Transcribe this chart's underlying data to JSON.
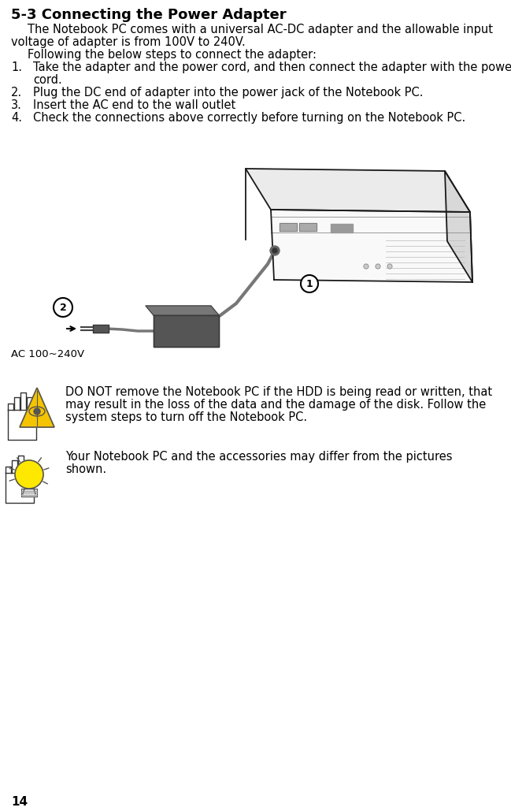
{
  "title": "5-3 Connecting the Power Adapter",
  "title_fontsize": 13,
  "body_fontsize": 10.5,
  "background_color": "#ffffff",
  "text_color": "#000000",
  "page_number": "14",
  "para1_line1": "The Notebook PC comes with a universal AC-DC adapter and the allowable input",
  "para1_line2": "voltage of adapter is from 100V to 240V.",
  "para2": "Following the below steps to connect the adapter:",
  "item1_line1": "Take the adapter and the power cord, and then connect the adapter with the power",
  "item1_line2": "cord.",
  "item2": "Plug the DC end of adapter into the power jack of the Notebook PC.",
  "item3": "Insert the AC end to the wall outlet",
  "item4": "Check the connections above correctly before turning on the Notebook PC.",
  "warning_line1": "DO NOT remove the Notebook PC if the HDD is being read or written, that",
  "warning_line2": "may result in the loss of the data and the damage of the disk. Follow the",
  "warning_line3": "system steps to turn off the Notebook PC.",
  "note_line1": "Your Notebook PC and the accessories may differ from the pictures",
  "note_line2": "shown.",
  "ac_label": "AC 100~240V"
}
